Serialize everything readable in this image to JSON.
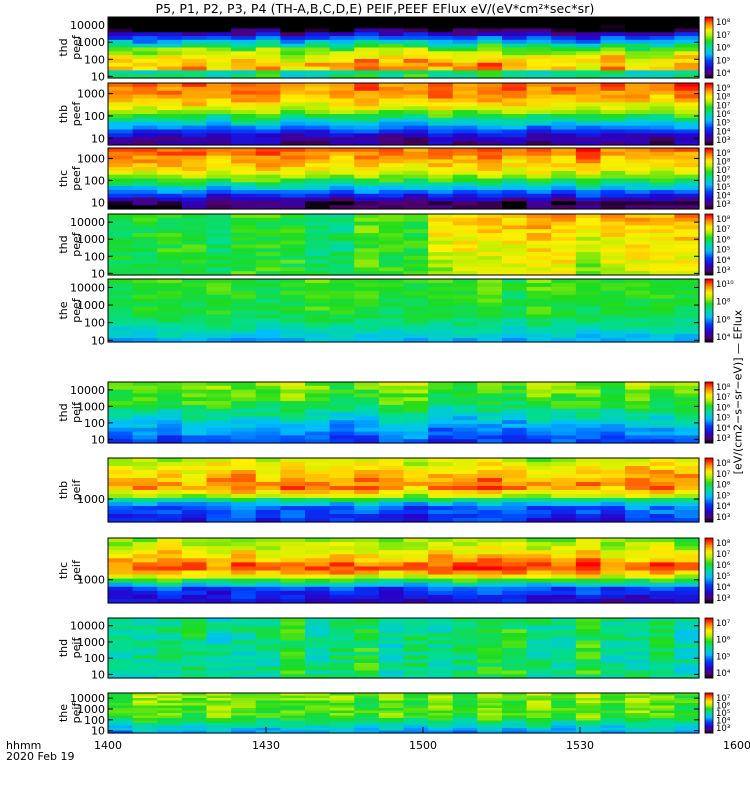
{
  "title": "P5, P1, P2, P3, P4 (TH-A,B,C,D,E) PEIF,PEEF EFlux eV/(eV*cm²*sec*sr)",
  "x_axis": {
    "info_line1": "hhmm",
    "info_line2": "2020 Feb 19",
    "ticks": [
      "1400",
      "1430",
      "1500",
      "1530",
      "1600"
    ]
  },
  "colorbar_title": "[eV/(cm2−s−sr−eV)] — EFlux",
  "chart_data": [
    {
      "type": "heatmap",
      "probe": "P5",
      "ylabel": [
        "thd",
        "peef"
      ],
      "scale": "log",
      "ylim": [
        8,
        30000
      ],
      "yticks": [
        "10000",
        "1000",
        "100",
        "10"
      ],
      "clim_exp": [
        4,
        8
      ],
      "cbar_ticks": [
        "10⁸",
        "10⁷",
        "10⁶",
        "10⁵",
        "10⁴"
      ],
      "x_range": [
        "1400",
        "1600"
      ],
      "slices": 24,
      "profile": [
        [
          0.1,
          3.2
        ],
        [
          0.3,
          4.8
        ],
        [
          0.55,
          6.8
        ],
        [
          0.75,
          7.4
        ],
        [
          1.0,
          7.6
        ]
      ],
      "note_band": "dark top strip at high energy"
    },
    {
      "type": "heatmap",
      "probe": "P1",
      "ylabel": [
        "thb",
        "peef"
      ],
      "scale": "log",
      "ylim": [
        5,
        3000
      ],
      "yticks": [
        "1000",
        "100",
        "10"
      ],
      "clim_exp": [
        3,
        9
      ],
      "cbar_ticks": [
        "10⁹",
        "10⁸",
        "10⁷",
        "10⁶",
        "10⁵",
        "10⁴",
        "10³"
      ],
      "x_range": [
        "1400",
        "1600"
      ],
      "slices": 24,
      "profile": [
        [
          0.0,
          8.6
        ],
        [
          0.25,
          8.2
        ],
        [
          0.45,
          7.3
        ],
        [
          0.7,
          5.2
        ],
        [
          0.88,
          3.8
        ],
        [
          1.0,
          3.6
        ]
      ]
    },
    {
      "type": "heatmap",
      "probe": "P2",
      "ylabel": [
        "thc",
        "peef"
      ],
      "scale": "log",
      "ylim": [
        5,
        3000
      ],
      "yticks": [
        "1000",
        "100",
        "10"
      ],
      "clim_exp": [
        3,
        9
      ],
      "cbar_ticks": [
        "10⁹",
        "10⁸",
        "10⁷",
        "10⁶",
        "10⁵",
        "10⁴",
        "10³"
      ],
      "x_range": [
        "1400",
        "1600"
      ],
      "slices": 24,
      "profile": [
        [
          0.0,
          8.6
        ],
        [
          0.3,
          8.0
        ],
        [
          0.5,
          7.0
        ],
        [
          0.72,
          5.0
        ],
        [
          0.88,
          3.4
        ],
        [
          1.0,
          3.2
        ]
      ]
    },
    {
      "type": "heatmap",
      "probe": "P3",
      "ylabel": [
        "thd",
        "peef"
      ],
      "scale": "log",
      "ylim": [
        8,
        30000
      ],
      "yticks": [
        "10000",
        "1000",
        "100",
        "10"
      ],
      "clim_exp": [
        3,
        8
      ],
      "cbar_ticks": [
        "10⁸",
        "10⁷",
        "10⁶",
        "10⁵",
        "10⁴",
        "10³"
      ],
      "x_range": [
        "1400",
        "1600"
      ],
      "slices": 24,
      "profile": [
        [
          0.0,
          6.0
        ],
        [
          1.0,
          6.0
        ]
      ],
      "late_increase": 1.2
    },
    {
      "type": "heatmap",
      "probe": "P4",
      "ylabel": [
        "the",
        "peef"
      ],
      "scale": "log",
      "ylim": [
        8,
        30000
      ],
      "yticks": [
        "10000",
        "1000",
        "100",
        "10"
      ],
      "clim_exp": [
        3,
        10
      ],
      "cbar_ticks": [
        "10¹⁰",
        "10⁸",
        "10⁶",
        "10⁴"
      ],
      "x_range": [
        "1400",
        "1600"
      ],
      "slices": 24,
      "profile": [
        [
          0.0,
          7.4
        ],
        [
          0.6,
          7.1
        ],
        [
          0.85,
          6.3
        ],
        [
          1.0,
          5.6
        ]
      ]
    },
    {
      "type": "heatmap",
      "probe": "P5",
      "ylabel": [
        "thd",
        "peif"
      ],
      "scale": "log",
      "ylim": [
        6,
        30000
      ],
      "yticks": [
        "10000",
        "1000",
        "100",
        "10"
      ],
      "clim_exp": [
        3,
        8
      ],
      "cbar_ticks": [
        "10⁸",
        "10⁷",
        "10⁶",
        "10⁵",
        "10⁴",
        "10³"
      ],
      "x_range": [
        "1400",
        "1600"
      ],
      "slices": 24,
      "profile": [
        [
          0.0,
          6.4
        ],
        [
          0.4,
          5.9
        ],
        [
          0.7,
          5.0
        ],
        [
          1.0,
          4.3
        ]
      ]
    },
    {
      "type": "heatmap",
      "probe": "P1",
      "ylabel": [
        "thb",
        "peif"
      ],
      "scale": "log",
      "ylim": [
        150,
        30000
      ],
      "yticks": [
        "1000"
      ],
      "clim_exp": [
        3,
        8
      ],
      "cbar_ticks": [
        "10⁸",
        "10⁷",
        "10⁶",
        "10⁵",
        "10⁴",
        "10³"
      ],
      "x_range": [
        "1400",
        "1600"
      ],
      "slices": 24,
      "profile": [
        [
          0.0,
          6.6
        ],
        [
          0.25,
          7.2
        ],
        [
          0.45,
          7.6
        ],
        [
          0.6,
          6.6
        ],
        [
          0.75,
          4.6
        ],
        [
          1.0,
          4.2
        ]
      ]
    },
    {
      "type": "heatmap",
      "probe": "P2",
      "ylabel": [
        "thc",
        "peif"
      ],
      "scale": "log",
      "ylim": [
        150,
        30000
      ],
      "yticks": [
        "1000"
      ],
      "clim_exp": [
        3,
        8
      ],
      "cbar_ticks": [
        "10⁸",
        "10⁷",
        "10⁶",
        "10⁵",
        "10⁴",
        "10³"
      ],
      "x_range": [
        "1400",
        "1600"
      ],
      "slices": 24,
      "profile": [
        [
          0.0,
          6.4
        ],
        [
          0.25,
          7.0
        ],
        [
          0.45,
          7.8
        ],
        [
          0.6,
          6.8
        ],
        [
          0.78,
          4.4
        ],
        [
          1.0,
          3.8
        ]
      ]
    },
    {
      "type": "heatmap",
      "probe": "P3",
      "ylabel": [
        "thd",
        "peif"
      ],
      "scale": "log",
      "ylim": [
        6,
        30000
      ],
      "yticks": [
        "10000",
        "1000",
        "100",
        "10"
      ],
      "clim_exp": [
        4,
        8
      ],
      "cbar_ticks": [
        "10⁷",
        "10⁶",
        "10⁵",
        "10⁴"
      ],
      "x_range": [
        "1400",
        "1600"
      ],
      "slices": 24,
      "profile": [
        [
          0.0,
          6.2
        ],
        [
          1.0,
          6.2
        ]
      ]
    },
    {
      "type": "heatmap",
      "probe": "P4",
      "ylabel": [
        "the",
        "peif"
      ],
      "scale": "log",
      "ylim": [
        6,
        30000
      ],
      "yticks": [
        "10000",
        "1000",
        "100",
        "10"
      ],
      "clim_exp": [
        3,
        8
      ],
      "cbar_ticks": [
        "10⁷",
        "10⁶",
        "10⁵",
        "10⁴",
        "10³"
      ],
      "x_range": [
        "1400",
        "1600"
      ],
      "slices": 24,
      "profile": [
        [
          0.0,
          6.4
        ],
        [
          0.6,
          6.2
        ],
        [
          0.85,
          5.3
        ],
        [
          1.0,
          4.8
        ]
      ]
    }
  ]
}
